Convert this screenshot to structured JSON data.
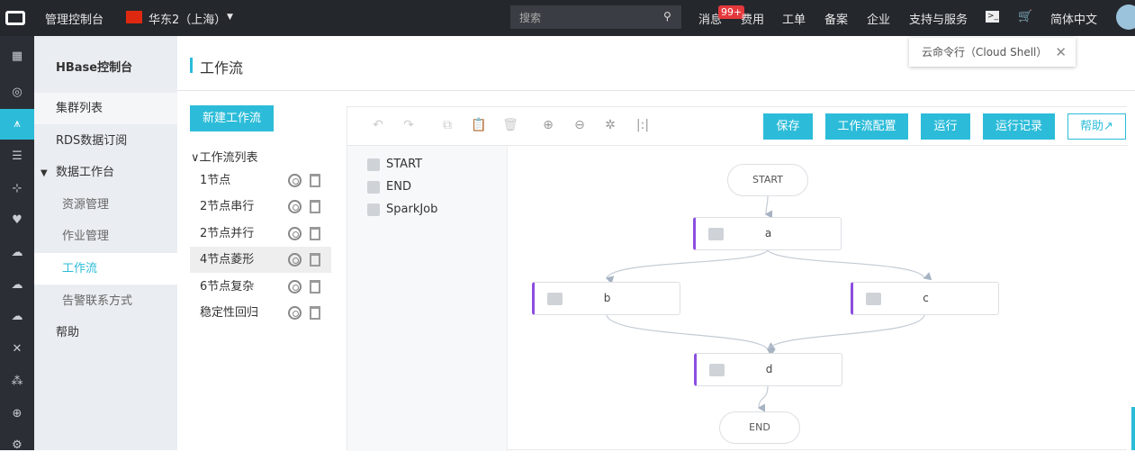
{
  "topbar": {
    "console": "管理控制台",
    "region": "华东2（上海）",
    "search_placeholder": "搜索",
    "messages": "消息",
    "badge": "99+",
    "billing": "费用",
    "tickets": "工单",
    "icp": "备案",
    "enterprise": "企业",
    "support": "支持与服务",
    "language": "简体中文"
  },
  "tooltip": {
    "text": "云命令行（Cloud Shell）"
  },
  "sidebar": {
    "title": "HBase控制台",
    "items": [
      {
        "label": "集群列表"
      },
      {
        "label": "RDS数据订阅"
      },
      {
        "label": "数据工作台"
      },
      {
        "label": "资源管理"
      },
      {
        "label": "作业管理"
      },
      {
        "label": "工作流"
      },
      {
        "label": "告警联系方式"
      },
      {
        "label": "帮助"
      }
    ]
  },
  "header": {
    "title": "工作流"
  },
  "workflows": {
    "new_button": "新建工作流",
    "list_title": "工作流列表",
    "items": [
      {
        "label": "1节点"
      },
      {
        "label": "2节点串行"
      },
      {
        "label": "2节点并行"
      },
      {
        "label": "4节点菱形"
      },
      {
        "label": "6节点复杂"
      },
      {
        "label": "稳定性回归"
      }
    ],
    "selected": "4节点菱形"
  },
  "editor": {
    "buttons": {
      "save": "保存",
      "config": "工作流配置",
      "run": "运行",
      "history": "运行记录",
      "help": "帮助"
    },
    "palette": [
      {
        "label": "START"
      },
      {
        "label": "END"
      },
      {
        "label": "SparkJob"
      }
    ],
    "nodes": {
      "start": "START",
      "a": "a",
      "b": "b",
      "c": "c",
      "d": "d",
      "end": "END"
    }
  },
  "colors": {
    "accent": "#2cbcd9",
    "node_bar": "#8b4ee0",
    "badge": "#e4393c"
  }
}
